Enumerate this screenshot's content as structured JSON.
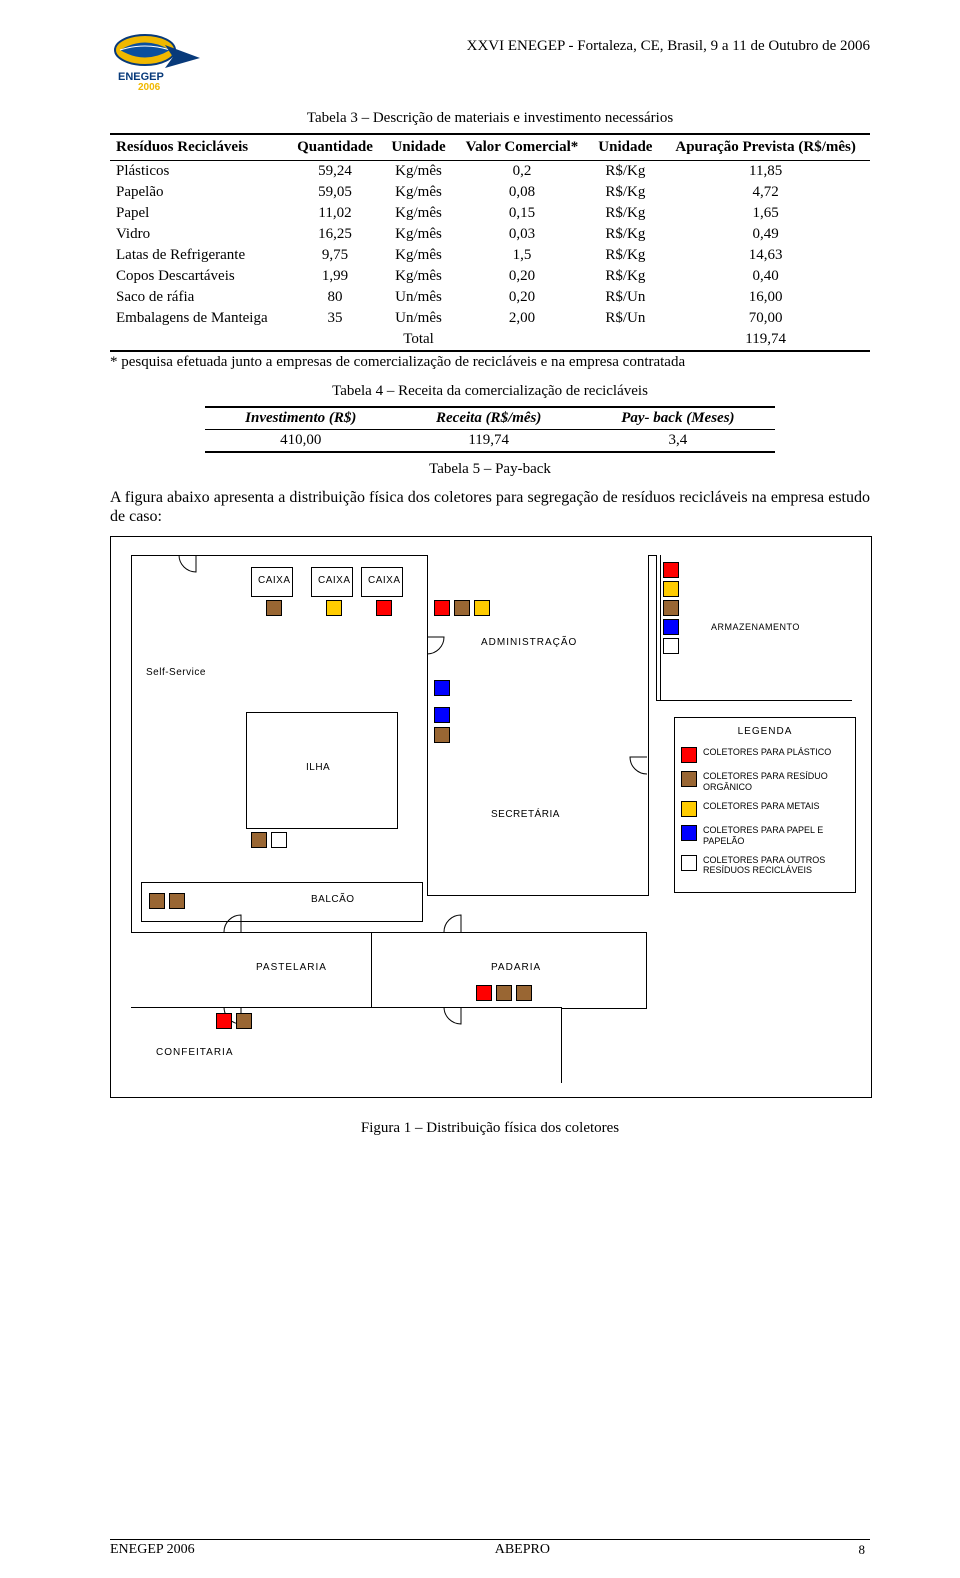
{
  "header": {
    "conference": "XXVI ENEGEP -  Fortaleza, CE, Brasil, 9 a 11 de Outubro de 2006"
  },
  "table3": {
    "caption": "Tabela 3 – Descrição de materiais e investimento necessários",
    "headers": [
      "Resíduos Recicláveis",
      "Quantidade",
      "Unidade",
      "Valor Comercial*",
      "Unidade",
      "Apuração Prevista (R$/mês)"
    ],
    "rows": [
      {
        "name": "Plásticos",
        "qty": "59,24",
        "u1": "Kg/mês",
        "val": "0,2",
        "u2": "R$/Kg",
        "ap": "11,85"
      },
      {
        "name": "Papelão",
        "qty": "59,05",
        "u1": "Kg/mês",
        "val": "0,08",
        "u2": "R$/Kg",
        "ap": "4,72"
      },
      {
        "name": "Papel",
        "qty": "11,02",
        "u1": "Kg/mês",
        "val": "0,15",
        "u2": "R$/Kg",
        "ap": "1,65"
      },
      {
        "name": "Vidro",
        "qty": "16,25",
        "u1": "Kg/mês",
        "val": "0,03",
        "u2": "R$/Kg",
        "ap": "0,49"
      },
      {
        "name": "Latas de Refrigerante",
        "qty": "9,75",
        "u1": "Kg/mês",
        "val": "1,5",
        "u2": "R$/Kg",
        "ap": "14,63"
      },
      {
        "name": "Copos Descartáveis",
        "qty": "1,99",
        "u1": "Kg/mês",
        "val": "0,20",
        "u2": "R$/Kg",
        "ap": "0,40"
      },
      {
        "name": "Saco de ráfia",
        "qty": "80",
        "u1": "Un/mês",
        "val": "0,20",
        "u2": "R$/Un",
        "ap": "16,00"
      },
      {
        "name": "Embalagens de Manteiga",
        "qty": "35",
        "u1": "Un/mês",
        "val": "2,00",
        "u2": "R$/Un",
        "ap": "70,00"
      }
    ],
    "total_label": "Total",
    "total_value": "119,74"
  },
  "footnote": "* pesquisa efetuada junto a empresas de comercialização de recicláveis e na empresa contratada",
  "table4": {
    "caption": "Tabela 4 – Receita da comercialização de recicláveis",
    "headers": [
      "Investimento (R$)",
      "Receita (R$/mês)",
      "Pay- back (Meses)"
    ],
    "row": {
      "inv": "410,00",
      "rec": "119,74",
      "pb": "3,4"
    }
  },
  "table5_caption": "Tabela 5 – Pay-back",
  "paragraph": "A figura abaixo apresenta a distribuição física dos coletores para segregação de resíduos recicláveis na empresa estudo de caso:",
  "diagram": {
    "rooms": {
      "caixa1": "CAIXA",
      "caixa2": "CAIXA",
      "caixa3": "CAIXA",
      "selfservice": "Self-Service",
      "administracao": "ADMINISTRAÇÃO",
      "armazenamento": "ARMAZENAMENTO",
      "ilha": "ILHA",
      "secretaria": "SECRETÁRIA",
      "balcao": "BALCÃO",
      "pastelaria": "PASTELARIA",
      "padaria": "PADARIA",
      "confeitaria": "CONFEITARIA"
    },
    "legend_title": "LEGENDA",
    "legend": [
      {
        "color": "#ff0000",
        "label": "COLETORES PARA PLÁSTICO"
      },
      {
        "color": "#996633",
        "label": "COLETORES PARA RESÍDUO ORGÂNICO"
      },
      {
        "color": "#ffcc00",
        "label": "COLETORES PARA METAIS"
      },
      {
        "color": "#0000ff",
        "label": "COLETORES PARA PAPEL E PAPELÃO"
      },
      {
        "color": "#ffffff",
        "label": "COLETORES PARA OUTROS RESÍDUOS RECICLÁVEIS"
      }
    ],
    "colors": {
      "red": "#ff0000",
      "brown": "#996633",
      "yellow": "#ffcc00",
      "blue": "#0000ff",
      "white": "#ffffff"
    }
  },
  "figure_caption": "Figura 1 – Distribuição física dos coletores",
  "footer": {
    "left": "ENEGEP 2006",
    "center": "ABEPRO",
    "page": "8"
  }
}
